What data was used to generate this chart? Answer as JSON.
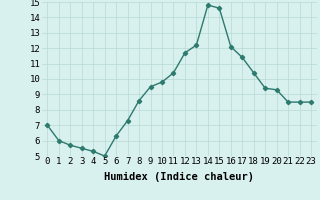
{
  "x": [
    0,
    1,
    2,
    3,
    4,
    5,
    6,
    7,
    8,
    9,
    10,
    11,
    12,
    13,
    14,
    15,
    16,
    17,
    18,
    19,
    20,
    21,
    22,
    23
  ],
  "y": [
    7.0,
    6.0,
    5.7,
    5.5,
    5.3,
    5.0,
    6.3,
    7.3,
    8.6,
    9.5,
    9.8,
    10.4,
    11.7,
    12.2,
    14.8,
    14.6,
    12.1,
    11.4,
    10.4,
    9.4,
    9.3,
    8.5,
    8.5,
    8.5
  ],
  "line_color": "#2d7a6e",
  "marker": "D",
  "marker_size": 2.2,
  "xlabel": "Humidex (Indice chaleur)",
  "ylim": [
    5,
    15
  ],
  "xlim": [
    -0.5,
    23.5
  ],
  "yticks": [
    5,
    6,
    7,
    8,
    9,
    10,
    11,
    12,
    13,
    14,
    15
  ],
  "xticks": [
    0,
    1,
    2,
    3,
    4,
    5,
    6,
    7,
    8,
    9,
    10,
    11,
    12,
    13,
    14,
    15,
    16,
    17,
    18,
    19,
    20,
    21,
    22,
    23
  ],
  "xtick_labels": [
    "0",
    "1",
    "2",
    "3",
    "4",
    "5",
    "6",
    "7",
    "8",
    "9",
    "10",
    "11",
    "12",
    "13",
    "14",
    "15",
    "16",
    "17",
    "18",
    "19",
    "20",
    "21",
    "22",
    "23"
  ],
  "background_color": "#d8f0ee",
  "grid_color": "#b8d8d4",
  "xlabel_fontsize": 7.5,
  "tick_fontsize": 6.5,
  "linewidth": 1.0
}
